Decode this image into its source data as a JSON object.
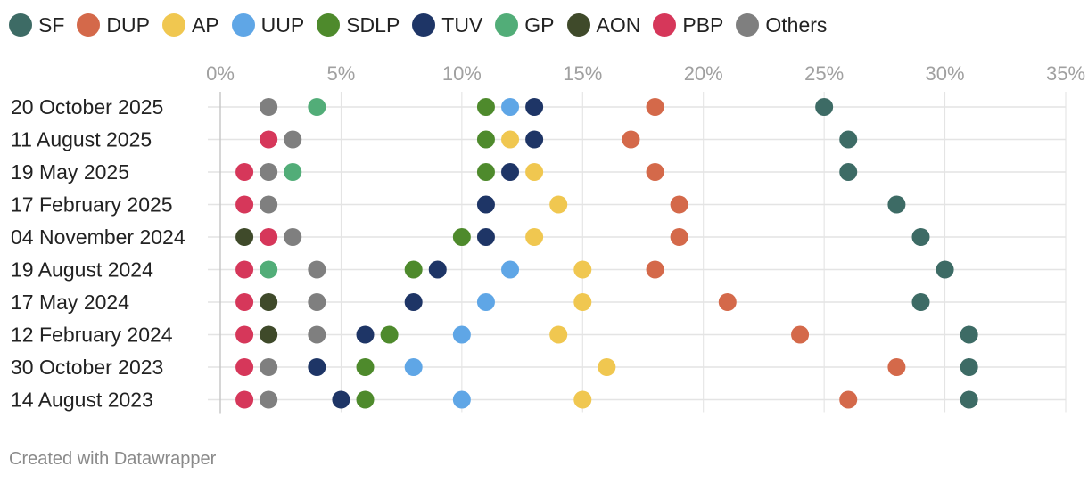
{
  "chart_data": {
    "type": "scatter",
    "subtype": "dot-plot",
    "title": "",
    "xlabel": "",
    "ylabel": "",
    "xlim": [
      0,
      35
    ],
    "x_ticks": [
      0,
      5,
      10,
      15,
      20,
      25,
      30,
      35
    ],
    "x_tick_labels": [
      "0%",
      "5%",
      "10%",
      "15%",
      "20%",
      "25%",
      "30%",
      "35%"
    ],
    "grid": true,
    "legend_position": "top",
    "categories": [
      "20 October 2025",
      "11 August 2025",
      "19 May 2025",
      "17 February 2025",
      "04 November 2024",
      "19 August 2024",
      "17 May 2024",
      "12 February 2024",
      "30 October 2023",
      "14 August 2023"
    ],
    "series": [
      {
        "name": "SF",
        "color": "#3d6b65",
        "values": [
          25,
          26,
          26,
          28,
          29,
          30,
          29,
          31,
          31,
          31
        ]
      },
      {
        "name": "DUP",
        "color": "#d4694a",
        "values": [
          18,
          17,
          18,
          19,
          19,
          18,
          21,
          24,
          28,
          26
        ]
      },
      {
        "name": "AP",
        "color": "#f0c750",
        "values": [
          null,
          12,
          13,
          14,
          13,
          15,
          15,
          14,
          16,
          15
        ]
      },
      {
        "name": "UUP",
        "color": "#5fa6e6",
        "values": [
          12,
          null,
          null,
          null,
          null,
          12,
          11,
          10,
          8,
          10
        ]
      },
      {
        "name": "SDLP",
        "color": "#4e8a2c",
        "values": [
          11,
          11,
          11,
          null,
          10,
          8,
          null,
          7,
          6,
          6
        ]
      },
      {
        "name": "TUV",
        "color": "#1e3566",
        "values": [
          13,
          13,
          12,
          11,
          11,
          9,
          8,
          6,
          4,
          5
        ]
      },
      {
        "name": "GP",
        "color": "#52ad78",
        "values": [
          4,
          null,
          3,
          null,
          null,
          2,
          null,
          null,
          null,
          null
        ]
      },
      {
        "name": "AON",
        "color": "#3f4a2a",
        "values": [
          null,
          null,
          null,
          null,
          1,
          null,
          2,
          2,
          null,
          null
        ]
      },
      {
        "name": "PBP",
        "color": "#d6375a",
        "values": [
          null,
          2,
          1,
          1,
          2,
          1,
          1,
          1,
          1,
          1
        ]
      },
      {
        "name": "Others",
        "color": "#7f7f7f",
        "values": [
          2,
          3,
          2,
          2,
          3,
          4,
          4,
          4,
          2,
          2
        ]
      }
    ]
  },
  "footer": {
    "credit": "Created with Datawrapper"
  }
}
